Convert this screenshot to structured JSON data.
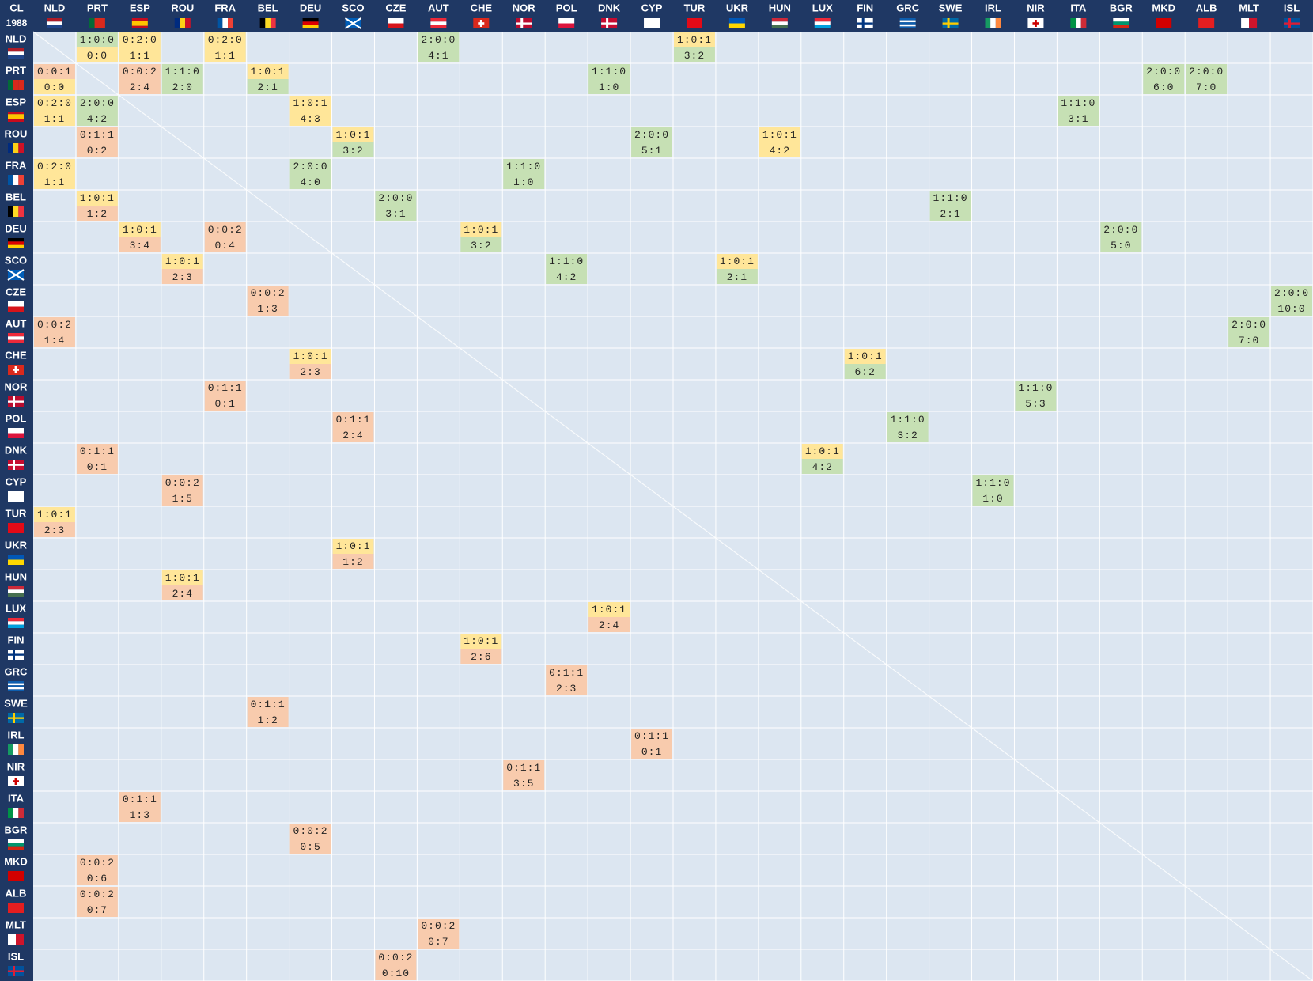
{
  "header": {
    "corner": [
      "CL",
      "1988"
    ],
    "columns": [
      "NLD",
      "PRT",
      "ESP",
      "ROU",
      "FRA",
      "BEL",
      "DEU",
      "SCO",
      "CZE",
      "AUT",
      "CHE",
      "NOR",
      "POL",
      "DNK",
      "CYP",
      "TUR",
      "UKR",
      "HUN",
      "LUX",
      "FIN",
      "GRC",
      "SWE",
      "IRL",
      "NIR",
      "ITA",
      "BGR",
      "MKD",
      "ALB",
      "MLT",
      "ISL"
    ]
  },
  "rows": [
    {
      "team": "NLD",
      "cells": [
        {
          "opponent": "PRT",
          "record": "1:0:0",
          "score": "0:0",
          "colors": [
            "#c6e0b4",
            "#ffe699"
          ]
        },
        {
          "opponent": "ESP",
          "record": "0:2:0",
          "score": "1:1",
          "colors": [
            "#ffe699",
            "#ffe699"
          ]
        },
        {
          "opponent": "FRA",
          "record": "0:2:0",
          "score": "1:1",
          "colors": [
            "#ffe699",
            "#ffe699"
          ]
        },
        {
          "opponent": "AUT",
          "record": "2:0:0",
          "score": "4:1",
          "colors": [
            "#c6e0b4",
            "#c6e0b4"
          ]
        },
        {
          "opponent": "TUR",
          "record": "1:0:1",
          "score": "3:2",
          "colors": [
            "#ffe699",
            "#c6e0b4"
          ]
        }
      ]
    },
    {
      "team": "PRT",
      "cells": [
        {
          "opponent": "NLD",
          "record": "0:0:1",
          "score": "0:0",
          "colors": [
            "#f8cbad",
            "#ffe699"
          ]
        },
        {
          "opponent": "ESP",
          "record": "0:0:2",
          "score": "2:4",
          "colors": [
            "#f8cbad",
            "#f8cbad"
          ]
        },
        {
          "opponent": "ROU",
          "record": "1:1:0",
          "score": "2:0",
          "colors": [
            "#c6e0b4",
            "#c6e0b4"
          ]
        },
        {
          "opponent": "BEL",
          "record": "1:0:1",
          "score": "2:1",
          "colors": [
            "#ffe699",
            "#c6e0b4"
          ]
        },
        {
          "opponent": "DNK",
          "record": "1:1:0",
          "score": "1:0",
          "colors": [
            "#c6e0b4",
            "#c6e0b4"
          ]
        },
        {
          "opponent": "MKD",
          "record": "2:0:0",
          "score": "6:0",
          "colors": [
            "#c6e0b4",
            "#c6e0b4"
          ]
        },
        {
          "opponent": "ALB",
          "record": "2:0:0",
          "score": "7:0",
          "colors": [
            "#c6e0b4",
            "#c6e0b4"
          ]
        }
      ]
    },
    {
      "team": "ESP",
      "cells": [
        {
          "opponent": "NLD",
          "record": "0:2:0",
          "score": "1:1",
          "colors": [
            "#ffe699",
            "#ffe699"
          ]
        },
        {
          "opponent": "PRT",
          "record": "2:0:0",
          "score": "4:2",
          "colors": [
            "#c6e0b4",
            "#c6e0b4"
          ]
        },
        {
          "opponent": "DEU",
          "record": "1:0:1",
          "score": "4:3",
          "colors": [
            "#ffe699",
            "#ffe699"
          ]
        },
        {
          "opponent": "ITA",
          "record": "1:1:0",
          "score": "3:1",
          "colors": [
            "#c6e0b4",
            "#c6e0b4"
          ]
        }
      ]
    },
    {
      "team": "ROU",
      "cells": [
        {
          "opponent": "PRT",
          "record": "0:1:1",
          "score": "0:2",
          "colors": [
            "#f8cbad",
            "#f8cbad"
          ]
        },
        {
          "opponent": "SCO",
          "record": "1:0:1",
          "score": "3:2",
          "colors": [
            "#ffe699",
            "#c6e0b4"
          ]
        },
        {
          "opponent": "CYP",
          "record": "2:0:0",
          "score": "5:1",
          "colors": [
            "#c6e0b4",
            "#c6e0b4"
          ]
        },
        {
          "opponent": "HUN",
          "record": "1:0:1",
          "score": "4:2",
          "colors": [
            "#ffe699",
            "#ffe699"
          ]
        }
      ]
    },
    {
      "team": "FRA",
      "cells": [
        {
          "opponent": "NLD",
          "record": "0:2:0",
          "score": "1:1",
          "colors": [
            "#ffe699",
            "#ffe699"
          ]
        },
        {
          "opponent": "DEU",
          "record": "2:0:0",
          "score": "4:0",
          "colors": [
            "#c6e0b4",
            "#c6e0b4"
          ]
        },
        {
          "opponent": "NOR",
          "record": "1:1:0",
          "score": "1:0",
          "colors": [
            "#c6e0b4",
            "#c6e0b4"
          ]
        }
      ]
    },
    {
      "team": "BEL",
      "cells": [
        {
          "opponent": "PRT",
          "record": "1:0:1",
          "score": "1:2",
          "colors": [
            "#ffe699",
            "#f8cbad"
          ]
        },
        {
          "opponent": "CZE",
          "record": "2:0:0",
          "score": "3:1",
          "colors": [
            "#c6e0b4",
            "#c6e0b4"
          ]
        },
        {
          "opponent": "SWE",
          "record": "1:1:0",
          "score": "2:1",
          "colors": [
            "#c6e0b4",
            "#c6e0b4"
          ]
        }
      ]
    },
    {
      "team": "DEU",
      "cells": [
        {
          "opponent": "ESP",
          "record": "1:0:1",
          "score": "3:4",
          "colors": [
            "#ffe699",
            "#f8cbad"
          ]
        },
        {
          "opponent": "FRA",
          "record": "0:0:2",
          "score": "0:4",
          "colors": [
            "#f8cbad",
            "#f8cbad"
          ]
        },
        {
          "opponent": "CHE",
          "record": "1:0:1",
          "score": "3:2",
          "colors": [
            "#ffe699",
            "#c6e0b4"
          ]
        },
        {
          "opponent": "BGR",
          "record": "2:0:0",
          "score": "5:0",
          "colors": [
            "#c6e0b4",
            "#c6e0b4"
          ]
        }
      ]
    },
    {
      "team": "SCO",
      "cells": [
        {
          "opponent": "ROU",
          "record": "1:0:1",
          "score": "2:3",
          "colors": [
            "#ffe699",
            "#f8cbad"
          ]
        },
        {
          "opponent": "POL",
          "record": "1:1:0",
          "score": "4:2",
          "colors": [
            "#c6e0b4",
            "#c6e0b4"
          ]
        },
        {
          "opponent": "UKR",
          "record": "1:0:1",
          "score": "2:1",
          "colors": [
            "#ffe699",
            "#c6e0b4"
          ]
        }
      ]
    },
    {
      "team": "CZE",
      "cells": [
        {
          "opponent": "BEL",
          "record": "0:0:2",
          "score": "1:3",
          "colors": [
            "#f8cbad",
            "#f8cbad"
          ]
        },
        {
          "opponent": "ISL",
          "record": "2:0:0",
          "score": "10:0",
          "colors": [
            "#c6e0b4",
            "#c6e0b4"
          ]
        }
      ]
    },
    {
      "team": "AUT",
      "cells": [
        {
          "opponent": "NLD",
          "record": "0:0:2",
          "score": "1:4",
          "colors": [
            "#f8cbad",
            "#f8cbad"
          ]
        },
        {
          "opponent": "MLT",
          "record": "2:0:0",
          "score": "7:0",
          "colors": [
            "#c6e0b4",
            "#c6e0b4"
          ]
        }
      ]
    },
    {
      "team": "CHE",
      "cells": [
        {
          "opponent": "DEU",
          "record": "1:0:1",
          "score": "2:3",
          "colors": [
            "#ffe699",
            "#f8cbad"
          ]
        },
        {
          "opponent": "FIN",
          "record": "1:0:1",
          "score": "6:2",
          "colors": [
            "#ffe699",
            "#c6e0b4"
          ]
        }
      ]
    },
    {
      "team": "NOR",
      "cells": [
        {
          "opponent": "FRA",
          "record": "0:1:1",
          "score": "0:1",
          "colors": [
            "#f8cbad",
            "#f8cbad"
          ]
        },
        {
          "opponent": "NIR",
          "record": "1:1:0",
          "score": "5:3",
          "colors": [
            "#c6e0b4",
            "#c6e0b4"
          ]
        }
      ]
    },
    {
      "team": "POL",
      "cells": [
        {
          "opponent": "SCO",
          "record": "0:1:1",
          "score": "2:4",
          "colors": [
            "#f8cbad",
            "#f8cbad"
          ]
        },
        {
          "opponent": "GRC",
          "record": "1:1:0",
          "score": "3:2",
          "colors": [
            "#c6e0b4",
            "#c6e0b4"
          ]
        }
      ]
    },
    {
      "team": "DNK",
      "cells": [
        {
          "opponent": "PRT",
          "record": "0:1:1",
          "score": "0:1",
          "colors": [
            "#f8cbad",
            "#f8cbad"
          ]
        },
        {
          "opponent": "LUX",
          "record": "1:0:1",
          "score": "4:2",
          "colors": [
            "#ffe699",
            "#c6e0b4"
          ]
        }
      ]
    },
    {
      "team": "CYP",
      "cells": [
        {
          "opponent": "ROU",
          "record": "0:0:2",
          "score": "1:5",
          "colors": [
            "#f8cbad",
            "#f8cbad"
          ]
        },
        {
          "opponent": "IRL",
          "record": "1:1:0",
          "score": "1:0",
          "colors": [
            "#c6e0b4",
            "#c6e0b4"
          ]
        }
      ]
    },
    {
      "team": "TUR",
      "cells": [
        {
          "opponent": "NLD",
          "record": "1:0:1",
          "score": "2:3",
          "colors": [
            "#ffe699",
            "#f8cbad"
          ]
        }
      ]
    },
    {
      "team": "UKR",
      "cells": [
        {
          "opponent": "SCO",
          "record": "1:0:1",
          "score": "1:2",
          "colors": [
            "#ffe699",
            "#f8cbad"
          ]
        }
      ]
    },
    {
      "team": "HUN",
      "cells": [
        {
          "opponent": "ROU",
          "record": "1:0:1",
          "score": "2:4",
          "colors": [
            "#ffe699",
            "#f8cbad"
          ]
        }
      ]
    },
    {
      "team": "LUX",
      "cells": [
        {
          "opponent": "DNK",
          "record": "1:0:1",
          "score": "2:4",
          "colors": [
            "#ffe699",
            "#f8cbad"
          ]
        }
      ]
    },
    {
      "team": "FIN",
      "cells": [
        {
          "opponent": "CHE",
          "record": "1:0:1",
          "score": "2:6",
          "colors": [
            "#ffe699",
            "#f8cbad"
          ]
        }
      ]
    },
    {
      "team": "GRC",
      "cells": [
        {
          "opponent": "POL",
          "record": "0:1:1",
          "score": "2:3",
          "colors": [
            "#f8cbad",
            "#f8cbad"
          ]
        }
      ]
    },
    {
      "team": "SWE",
      "cells": [
        {
          "opponent": "BEL",
          "record": "0:1:1",
          "score": "1:2",
          "colors": [
            "#f8cbad",
            "#f8cbad"
          ]
        }
      ]
    },
    {
      "team": "IRL",
      "cells": [
        {
          "opponent": "CYP",
          "record": "0:1:1",
          "score": "0:1",
          "colors": [
            "#f8cbad",
            "#f8cbad"
          ]
        }
      ]
    },
    {
      "team": "NIR",
      "cells": [
        {
          "opponent": "NOR",
          "record": "0:1:1",
          "score": "3:5",
          "colors": [
            "#f8cbad",
            "#f8cbad"
          ]
        }
      ]
    },
    {
      "team": "ITA",
      "cells": [
        {
          "opponent": "ESP",
          "record": "0:1:1",
          "score": "1:3",
          "colors": [
            "#f8cbad",
            "#f8cbad"
          ]
        }
      ]
    },
    {
      "team": "BGR",
      "cells": [
        {
          "opponent": "DEU",
          "record": "0:0:2",
          "score": "0:5",
          "colors": [
            "#f8cbad",
            "#f8cbad"
          ]
        }
      ]
    },
    {
      "team": "MKD",
      "cells": [
        {
          "opponent": "PRT",
          "record": "0:0:2",
          "score": "0:6",
          "colors": [
            "#f8cbad",
            "#f8cbad"
          ]
        }
      ]
    },
    {
      "team": "ALB",
      "cells": [
        {
          "opponent": "PRT",
          "record": "0:0:2",
          "score": "0:7",
          "colors": [
            "#f8cbad",
            "#f8cbad"
          ]
        }
      ]
    },
    {
      "team": "MLT",
      "cells": [
        {
          "opponent": "AUT",
          "record": "0:0:2",
          "score": "0:7",
          "colors": [
            "#f8cbad",
            "#f8cbad"
          ]
        }
      ]
    },
    {
      "team": "ISL",
      "cells": [
        {
          "opponent": "CZE",
          "record": "0:0:2",
          "score": "0:10",
          "colors": [
            "#f8cbad",
            "#f8cbad"
          ]
        }
      ]
    }
  ]
}
